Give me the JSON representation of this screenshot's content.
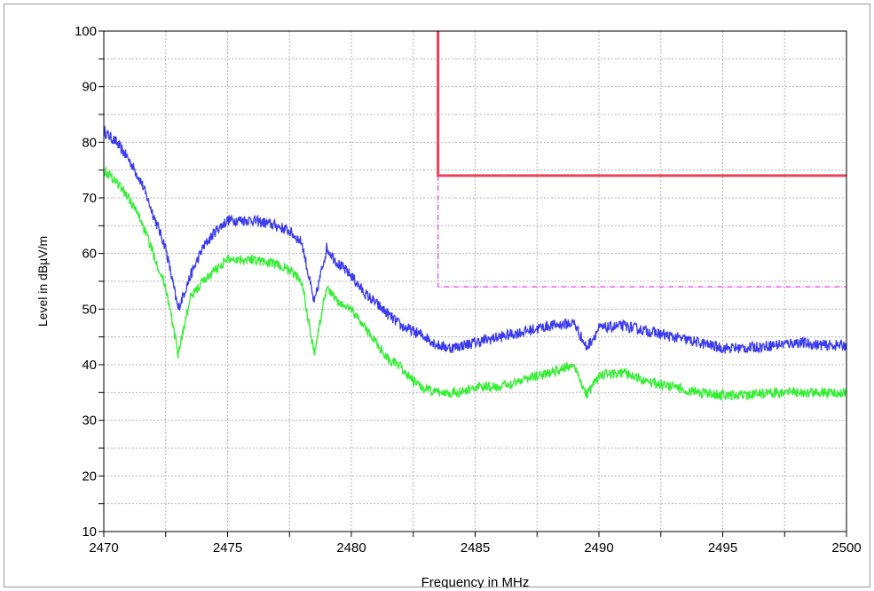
{
  "chart_data": {
    "type": "line",
    "xlabel": "Frequency in MHz",
    "ylabel": "Level in dBµV/m",
    "xlim": [
      2470,
      2500
    ],
    "ylim": [
      10,
      100
    ],
    "x_ticks": [
      "2470",
      "2475",
      "2480",
      "2485",
      "2490",
      "2495",
      "2500"
    ],
    "y_ticks": [
      "10",
      "20",
      "30",
      "40",
      "50",
      "60",
      "70",
      "80",
      "90",
      "100"
    ],
    "grid": true,
    "series": [
      {
        "color": "#3a3aee",
        "noise": 1.0,
        "x": [
          2470,
          2470.5,
          2471,
          2471.5,
          2472,
          2472.5,
          2473,
          2473.5,
          2474,
          2474.5,
          2475,
          2476,
          2477,
          2477.5,
          2478,
          2478.5,
          2479,
          2479.5,
          2480,
          2480.5,
          2481,
          2481.5,
          2482,
          2482.5,
          2483,
          2483.5,
          2484,
          2484.5,
          2485,
          2486,
          2487,
          2488,
          2489,
          2489.5,
          2490,
          2491,
          2492,
          2493,
          2494,
          2495,
          2496,
          2497,
          2498,
          2499,
          2500
        ],
        "y": [
          82,
          80,
          77,
          73,
          67,
          61,
          50,
          56,
          61,
          64,
          66,
          66,
          65,
          64,
          62,
          51,
          61,
          58,
          56,
          53,
          51,
          49,
          47,
          46,
          45,
          43.5,
          43,
          43.5,
          44,
          45,
          46,
          47,
          47.5,
          43,
          46.5,
          47,
          46,
          45,
          44,
          43,
          43,
          43.5,
          44,
          43.5,
          43.5
        ]
      },
      {
        "color": "#33ee33",
        "noise": 0.9,
        "x": [
          2470,
          2470.5,
          2471,
          2471.5,
          2472,
          2472.5,
          2473,
          2473.5,
          2474,
          2474.5,
          2475,
          2476,
          2477,
          2477.5,
          2478,
          2478.5,
          2479,
          2479.5,
          2480,
          2480.5,
          2481,
          2481.5,
          2482,
          2482.5,
          2483,
          2483.5,
          2484,
          2484.5,
          2485,
          2486,
          2487,
          2488,
          2489,
          2489.5,
          2490,
          2491,
          2492,
          2493,
          2494,
          2495,
          2496,
          2497,
          2498,
          2499,
          2500
        ],
        "y": [
          75,
          73,
          70,
          66,
          60,
          54,
          42,
          52,
          55,
          57,
          59,
          59,
          58,
          57,
          55,
          42,
          54,
          51,
          50,
          47,
          44,
          41,
          39.5,
          37,
          35.5,
          35,
          35,
          35,
          36,
          36,
          37.5,
          38.5,
          40,
          34.5,
          38,
          38.5,
          37,
          36,
          35,
          34.5,
          34.5,
          35,
          35,
          35,
          35
        ]
      },
      {
        "color": "#f0405a",
        "style": "solid",
        "x": [
          2483.5,
          2483.5,
          2500
        ],
        "y": [
          100,
          74,
          74
        ]
      },
      {
        "color": "#e040e0",
        "style": "dashdot",
        "x": [
          2483.5,
          2483.5,
          2500
        ],
        "y": [
          74,
          54,
          54
        ]
      }
    ]
  }
}
